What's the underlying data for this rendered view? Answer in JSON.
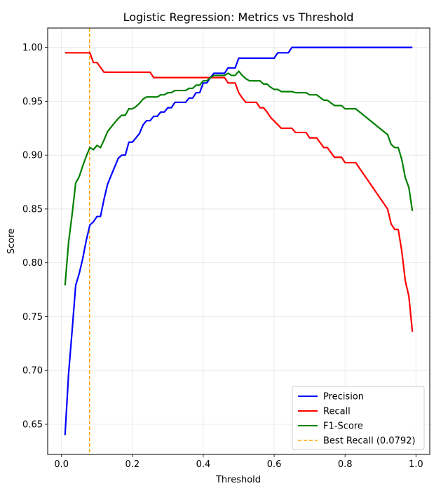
{
  "chart_data": {
    "type": "line",
    "title": "Logistic Regression: Metrics vs Threshold",
    "xlabel": "Threshold",
    "ylabel": "Score",
    "xlim": [
      -0.039,
      1.039
    ],
    "ylim": [
      0.622,
      1.018
    ],
    "xticks": [
      0.0,
      0.2,
      0.4,
      0.6,
      0.8,
      1.0
    ],
    "xtick_labels": [
      "0.0",
      "0.2",
      "0.4",
      "0.6",
      "0.8",
      "1.0"
    ],
    "yticks": [
      0.65,
      0.7,
      0.75,
      0.8,
      0.85,
      0.9,
      0.95,
      1.0
    ],
    "ytick_labels": [
      "0.65",
      "0.70",
      "0.75",
      "0.80",
      "0.85",
      "0.90",
      "0.95",
      "1.00"
    ],
    "grid": true,
    "legend_position": "bottom-right",
    "series": [
      {
        "name": "Precision",
        "color": "#0000ff",
        "points": [
          [
            0.01,
            0.64
          ],
          [
            0.02,
            0.697
          ],
          [
            0.03,
            0.737
          ],
          [
            0.04,
            0.779
          ],
          [
            0.05,
            0.79
          ],
          [
            0.06,
            0.804
          ],
          [
            0.07,
            0.821
          ],
          [
            0.08,
            0.835
          ],
          [
            0.09,
            0.838
          ],
          [
            0.1,
            0.843
          ],
          [
            0.11,
            0.843
          ],
          [
            0.12,
            0.859
          ],
          [
            0.13,
            0.873
          ],
          [
            0.14,
            0.881
          ],
          [
            0.15,
            0.889
          ],
          [
            0.16,
            0.897
          ],
          [
            0.17,
            0.9
          ],
          [
            0.18,
            0.9
          ],
          [
            0.19,
            0.912
          ],
          [
            0.2,
            0.912
          ],
          [
            0.21,
            0.916
          ],
          [
            0.22,
            0.92
          ],
          [
            0.23,
            0.928
          ],
          [
            0.24,
            0.932
          ],
          [
            0.25,
            0.932
          ],
          [
            0.26,
            0.936
          ],
          [
            0.27,
            0.936
          ],
          [
            0.28,
            0.94
          ],
          [
            0.29,
            0.94
          ],
          [
            0.3,
            0.944
          ],
          [
            0.31,
            0.944
          ],
          [
            0.32,
            0.949
          ],
          [
            0.33,
            0.949
          ],
          [
            0.34,
            0.949
          ],
          [
            0.35,
            0.949
          ],
          [
            0.36,
            0.953
          ],
          [
            0.37,
            0.953
          ],
          [
            0.38,
            0.958
          ],
          [
            0.39,
            0.958
          ],
          [
            0.4,
            0.967
          ],
          [
            0.41,
            0.967
          ],
          [
            0.42,
            0.972
          ],
          [
            0.43,
            0.976
          ],
          [
            0.44,
            0.976
          ],
          [
            0.45,
            0.976
          ],
          [
            0.46,
            0.976
          ],
          [
            0.47,
            0.981
          ],
          [
            0.48,
            0.981
          ],
          [
            0.49,
            0.981
          ],
          [
            0.5,
            0.99
          ],
          [
            0.51,
            0.99
          ],
          [
            0.6,
            0.99
          ],
          [
            0.61,
            0.995
          ],
          [
            0.62,
            0.995
          ],
          [
            0.64,
            0.995
          ],
          [
            0.65,
            1.0
          ],
          [
            0.99,
            1.0
          ]
        ]
      },
      {
        "name": "Recall",
        "color": "#ff0000",
        "points": [
          [
            0.01,
            0.995
          ],
          [
            0.07,
            0.995
          ],
          [
            0.08,
            0.995
          ],
          [
            0.09,
            0.986
          ],
          [
            0.1,
            0.986
          ],
          [
            0.12,
            0.977
          ],
          [
            0.24,
            0.977
          ],
          [
            0.25,
            0.977
          ],
          [
            0.26,
            0.972
          ],
          [
            0.43,
            0.972
          ],
          [
            0.46,
            0.972
          ],
          [
            0.47,
            0.967
          ],
          [
            0.49,
            0.967
          ],
          [
            0.5,
            0.958
          ],
          [
            0.51,
            0.953
          ],
          [
            0.52,
            0.949
          ],
          [
            0.55,
            0.949
          ],
          [
            0.56,
            0.944
          ],
          [
            0.57,
            0.944
          ],
          [
            0.58,
            0.94
          ],
          [
            0.59,
            0.935
          ],
          [
            0.62,
            0.925
          ],
          [
            0.65,
            0.925
          ],
          [
            0.66,
            0.921
          ],
          [
            0.69,
            0.921
          ],
          [
            0.7,
            0.916
          ],
          [
            0.72,
            0.916
          ],
          [
            0.74,
            0.907
          ],
          [
            0.75,
            0.907
          ],
          [
            0.77,
            0.898
          ],
          [
            0.79,
            0.898
          ],
          [
            0.8,
            0.893
          ],
          [
            0.83,
            0.893
          ],
          [
            0.92,
            0.85
          ],
          [
            0.93,
            0.836
          ],
          [
            0.94,
            0.831
          ],
          [
            0.95,
            0.831
          ],
          [
            0.96,
            0.811
          ],
          [
            0.97,
            0.783
          ],
          [
            0.98,
            0.769
          ],
          [
            0.99,
            0.736
          ]
        ]
      },
      {
        "name": "F1-Score",
        "color": "#008000",
        "points": [
          [
            0.01,
            0.779
          ],
          [
            0.02,
            0.819
          ],
          [
            0.03,
            0.845
          ],
          [
            0.04,
            0.874
          ],
          [
            0.05,
            0.88
          ],
          [
            0.06,
            0.89
          ],
          [
            0.07,
            0.899
          ],
          [
            0.08,
            0.907
          ],
          [
            0.09,
            0.905
          ],
          [
            0.1,
            0.909
          ],
          [
            0.11,
            0.907
          ],
          [
            0.12,
            0.914
          ],
          [
            0.13,
            0.922
          ],
          [
            0.14,
            0.926
          ],
          [
            0.15,
            0.93
          ],
          [
            0.16,
            0.934
          ],
          [
            0.17,
            0.937
          ],
          [
            0.18,
            0.937
          ],
          [
            0.19,
            0.943
          ],
          [
            0.2,
            0.943
          ],
          [
            0.21,
            0.945
          ],
          [
            0.22,
            0.948
          ],
          [
            0.23,
            0.952
          ],
          [
            0.24,
            0.954
          ],
          [
            0.25,
            0.954
          ],
          [
            0.26,
            0.954
          ],
          [
            0.27,
            0.954
          ],
          [
            0.28,
            0.956
          ],
          [
            0.29,
            0.956
          ],
          [
            0.3,
            0.958
          ],
          [
            0.31,
            0.958
          ],
          [
            0.32,
            0.96
          ],
          [
            0.33,
            0.96
          ],
          [
            0.34,
            0.96
          ],
          [
            0.35,
            0.96
          ],
          [
            0.36,
            0.962
          ],
          [
            0.37,
            0.962
          ],
          [
            0.38,
            0.965
          ],
          [
            0.39,
            0.965
          ],
          [
            0.4,
            0.969
          ],
          [
            0.41,
            0.969
          ],
          [
            0.42,
            0.972
          ],
          [
            0.43,
            0.974
          ],
          [
            0.44,
            0.974
          ],
          [
            0.45,
            0.974
          ],
          [
            0.46,
            0.974
          ],
          [
            0.47,
            0.976
          ],
          [
            0.48,
            0.974
          ],
          [
            0.49,
            0.974
          ],
          [
            0.5,
            0.978
          ],
          [
            0.51,
            0.974
          ],
          [
            0.52,
            0.971
          ],
          [
            0.53,
            0.969
          ],
          [
            0.56,
            0.969
          ],
          [
            0.57,
            0.966
          ],
          [
            0.58,
            0.966
          ],
          [
            0.59,
            0.963
          ],
          [
            0.6,
            0.961
          ],
          [
            0.61,
            0.961
          ],
          [
            0.62,
            0.959
          ],
          [
            0.65,
            0.959
          ],
          [
            0.66,
            0.958
          ],
          [
            0.69,
            0.958
          ],
          [
            0.7,
            0.956
          ],
          [
            0.72,
            0.956
          ],
          [
            0.74,
            0.951
          ],
          [
            0.75,
            0.951
          ],
          [
            0.77,
            0.946
          ],
          [
            0.79,
            0.946
          ],
          [
            0.8,
            0.943
          ],
          [
            0.83,
            0.943
          ],
          [
            0.92,
            0.919
          ],
          [
            0.93,
            0.91
          ],
          [
            0.94,
            0.907
          ],
          [
            0.95,
            0.907
          ],
          [
            0.96,
            0.896
          ],
          [
            0.97,
            0.879
          ],
          [
            0.98,
            0.87
          ],
          [
            0.99,
            0.848
          ]
        ]
      }
    ],
    "reference_line": {
      "name": "Best Recall (0.0792)",
      "x": 0.0792,
      "color": "#ffa500",
      "style": "dashed"
    }
  }
}
